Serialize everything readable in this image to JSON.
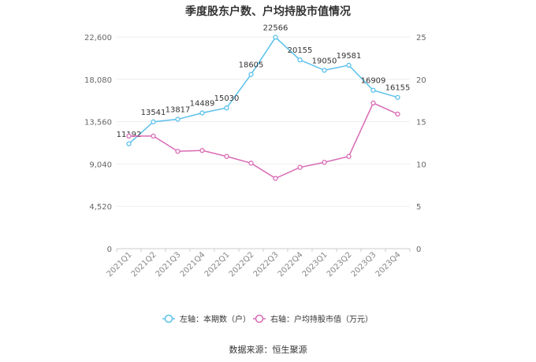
{
  "chart_data": {
    "type": "line",
    "title": "季度股东户数、户均持股市值情况",
    "source": "数据来源：恒生聚源",
    "categories": [
      "2021Q1",
      "2021Q2",
      "2021Q3",
      "2021Q4",
      "2022Q1",
      "2022Q2",
      "2022Q3",
      "2022Q4",
      "2023Q1",
      "2023Q2",
      "2023Q3",
      "2023Q4"
    ],
    "left_axis": {
      "ylim": [
        0,
        22600
      ],
      "ticks": [
        "0",
        "4,520",
        "9,040",
        "13,560",
        "18,080",
        "22,600"
      ],
      "tick_values": [
        0,
        4520,
        9040,
        13560,
        18080,
        22600
      ]
    },
    "right_axis": {
      "ylim": [
        0,
        25
      ],
      "ticks": [
        "0",
        "5",
        "10",
        "15",
        "20",
        "25"
      ],
      "tick_values": [
        0,
        5,
        10,
        15,
        20,
        25
      ]
    },
    "series": [
      {
        "name": "左轴：本期数（户）",
        "axis": "left",
        "color": "#5bc0eb",
        "values": [
          11192,
          13541,
          13817,
          14489,
          15030,
          18605,
          22566,
          20155,
          19050,
          19581,
          16909,
          16155
        ],
        "labels": [
          "11192",
          "13541",
          "13817",
          "14489",
          "15030",
          "18605",
          "22566",
          "20155",
          "19050",
          "19581",
          "16909",
          "16155"
        ]
      },
      {
        "name": "右轴：户均持股市值（万元）",
        "axis": "right",
        "color": "#d96bb5",
        "values": [
          13.3,
          13.3,
          11.5,
          11.6,
          10.9,
          10.1,
          8.3,
          9.6,
          10.2,
          10.9,
          17.2,
          15.9
        ]
      }
    ],
    "grid": true,
    "legend": "bottom-center"
  }
}
